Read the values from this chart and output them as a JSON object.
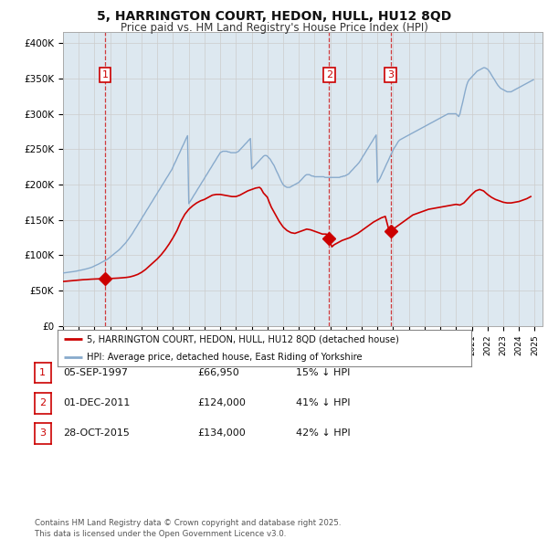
{
  "title": "5, HARRINGTON COURT, HEDON, HULL, HU12 8QD",
  "subtitle": "Price paid vs. HM Land Registry's House Price Index (HPI)",
  "title_fontsize": 10,
  "subtitle_fontsize": 8.5,
  "ylabel_ticks": [
    "£0",
    "£50K",
    "£100K",
    "£150K",
    "£200K",
    "£250K",
    "£300K",
    "£350K",
    "£400K"
  ],
  "ytick_values": [
    0,
    50000,
    100000,
    150000,
    200000,
    250000,
    300000,
    350000,
    400000
  ],
  "ylim": [
    0,
    415000
  ],
  "xlim_start": 1995.0,
  "xlim_end": 2025.5,
  "sale_dates": [
    1997.68,
    2011.92,
    2015.83
  ],
  "sale_prices": [
    66950,
    124000,
    134000
  ],
  "sale_labels": [
    "1",
    "2",
    "3"
  ],
  "red_line_color": "#cc0000",
  "blue_line_color": "#88aacc",
  "grid_color": "#cccccc",
  "chart_bg_color": "#dde8f0",
  "background_color": "#ffffff",
  "legend_label_red": "5, HARRINGTON COURT, HEDON, HULL, HU12 8QD (detached house)",
  "legend_label_blue": "HPI: Average price, detached house, East Riding of Yorkshire",
  "table_rows": [
    [
      "1",
      "05-SEP-1997",
      "£66,950",
      "15% ↓ HPI"
    ],
    [
      "2",
      "01-DEC-2011",
      "£124,000",
      "41% ↓ HPI"
    ],
    [
      "3",
      "28-OCT-2015",
      "£134,000",
      "42% ↓ HPI"
    ]
  ],
  "footnote": "Contains HM Land Registry data © Crown copyright and database right 2025.\nThis data is licensed under the Open Government Licence v3.0.",
  "hpi_years": [
    1995.0,
    1995.08,
    1995.17,
    1995.25,
    1995.33,
    1995.42,
    1995.5,
    1995.58,
    1995.67,
    1995.75,
    1995.83,
    1995.92,
    1996.0,
    1996.08,
    1996.17,
    1996.25,
    1996.33,
    1996.42,
    1996.5,
    1996.58,
    1996.67,
    1996.75,
    1996.83,
    1996.92,
    1997.0,
    1997.08,
    1997.17,
    1997.25,
    1997.33,
    1997.42,
    1997.5,
    1997.58,
    1997.67,
    1997.75,
    1997.83,
    1997.92,
    1998.0,
    1998.08,
    1998.17,
    1998.25,
    1998.33,
    1998.42,
    1998.5,
    1998.58,
    1998.67,
    1998.75,
    1998.83,
    1998.92,
    1999.0,
    1999.08,
    1999.17,
    1999.25,
    1999.33,
    1999.42,
    1999.5,
    1999.58,
    1999.67,
    1999.75,
    1999.83,
    1999.92,
    2000.0,
    2000.08,
    2000.17,
    2000.25,
    2000.33,
    2000.42,
    2000.5,
    2000.58,
    2000.67,
    2000.75,
    2000.83,
    2000.92,
    2001.0,
    2001.08,
    2001.17,
    2001.25,
    2001.33,
    2001.42,
    2001.5,
    2001.58,
    2001.67,
    2001.75,
    2001.83,
    2001.92,
    2002.0,
    2002.08,
    2002.17,
    2002.25,
    2002.33,
    2002.42,
    2002.5,
    2002.58,
    2002.67,
    2002.75,
    2002.83,
    2002.92,
    2003.0,
    2003.08,
    2003.17,
    2003.25,
    2003.33,
    2003.42,
    2003.5,
    2003.58,
    2003.67,
    2003.75,
    2003.83,
    2003.92,
    2004.0,
    2004.08,
    2004.17,
    2004.25,
    2004.33,
    2004.42,
    2004.5,
    2004.58,
    2004.67,
    2004.75,
    2004.83,
    2004.92,
    2005.0,
    2005.08,
    2005.17,
    2005.25,
    2005.33,
    2005.42,
    2005.5,
    2005.58,
    2005.67,
    2005.75,
    2005.83,
    2005.92,
    2006.0,
    2006.08,
    2006.17,
    2006.25,
    2006.33,
    2006.42,
    2006.5,
    2006.58,
    2006.67,
    2006.75,
    2006.83,
    2006.92,
    2007.0,
    2007.08,
    2007.17,
    2007.25,
    2007.33,
    2007.42,
    2007.5,
    2007.58,
    2007.67,
    2007.75,
    2007.83,
    2007.92,
    2008.0,
    2008.08,
    2008.17,
    2008.25,
    2008.33,
    2008.42,
    2008.5,
    2008.58,
    2008.67,
    2008.75,
    2008.83,
    2008.92,
    2009.0,
    2009.08,
    2009.17,
    2009.25,
    2009.33,
    2009.42,
    2009.5,
    2009.58,
    2009.67,
    2009.75,
    2009.83,
    2009.92,
    2010.0,
    2010.08,
    2010.17,
    2010.25,
    2010.33,
    2010.42,
    2010.5,
    2010.58,
    2010.67,
    2010.75,
    2010.83,
    2010.92,
    2011.0,
    2011.08,
    2011.17,
    2011.25,
    2011.33,
    2011.42,
    2011.5,
    2011.58,
    2011.67,
    2011.75,
    2011.83,
    2011.92,
    2012.0,
    2012.08,
    2012.17,
    2012.25,
    2012.33,
    2012.42,
    2012.5,
    2012.58,
    2012.67,
    2012.75,
    2012.83,
    2012.92,
    2013.0,
    2013.08,
    2013.17,
    2013.25,
    2013.33,
    2013.42,
    2013.5,
    2013.58,
    2013.67,
    2013.75,
    2013.83,
    2013.92,
    2014.0,
    2014.08,
    2014.17,
    2014.25,
    2014.33,
    2014.42,
    2014.5,
    2014.58,
    2014.67,
    2014.75,
    2014.83,
    2014.92,
    2015.0,
    2015.08,
    2015.17,
    2015.25,
    2015.33,
    2015.42,
    2015.5,
    2015.58,
    2015.67,
    2015.75,
    2015.83,
    2015.92,
    2016.0,
    2016.08,
    2016.17,
    2016.25,
    2016.33,
    2016.42,
    2016.5,
    2016.58,
    2016.67,
    2016.75,
    2016.83,
    2016.92,
    2017.0,
    2017.08,
    2017.17,
    2017.25,
    2017.33,
    2017.42,
    2017.5,
    2017.58,
    2017.67,
    2017.75,
    2017.83,
    2017.92,
    2018.0,
    2018.08,
    2018.17,
    2018.25,
    2018.33,
    2018.42,
    2018.5,
    2018.58,
    2018.67,
    2018.75,
    2018.83,
    2018.92,
    2019.0,
    2019.08,
    2019.17,
    2019.25,
    2019.33,
    2019.42,
    2019.5,
    2019.58,
    2019.67,
    2019.75,
    2019.83,
    2019.92,
    2020.0,
    2020.08,
    2020.17,
    2020.25,
    2020.33,
    2020.42,
    2020.5,
    2020.58,
    2020.67,
    2020.75,
    2020.83,
    2020.92,
    2021.0,
    2021.08,
    2021.17,
    2021.25,
    2021.33,
    2021.42,
    2021.5,
    2021.58,
    2021.67,
    2021.75,
    2021.83,
    2021.92,
    2022.0,
    2022.08,
    2022.17,
    2022.25,
    2022.33,
    2022.42,
    2022.5,
    2022.58,
    2022.67,
    2022.75,
    2022.83,
    2022.92,
    2023.0,
    2023.08,
    2023.17,
    2023.25,
    2023.33,
    2023.42,
    2023.5,
    2023.58,
    2023.67,
    2023.75,
    2023.83,
    2023.92,
    2024.0,
    2024.08,
    2024.17,
    2024.25,
    2024.33,
    2024.42,
    2024.5,
    2024.58,
    2024.67,
    2024.75,
    2024.83,
    2024.92
  ],
  "hpi_values": [
    75000,
    75200,
    75500,
    75800,
    76000,
    76300,
    76500,
    76700,
    77000,
    77300,
    77600,
    78000,
    78500,
    78800,
    79200,
    79600,
    80000,
    80400,
    80900,
    81400,
    82000,
    82500,
    83200,
    84000,
    85000,
    85800,
    86600,
    87500,
    88500,
    89500,
    90500,
    91500,
    92500,
    93500,
    94500,
    96000,
    97500,
    99000,
    100500,
    102000,
    103500,
    105000,
    106500,
    108000,
    110000,
    112000,
    114000,
    116000,
    118000,
    120500,
    123000,
    125500,
    128000,
    131000,
    134000,
    137000,
    140000,
    143000,
    146000,
    149000,
    152000,
    155000,
    158000,
    161000,
    164000,
    167000,
    170000,
    173000,
    176000,
    179000,
    182000,
    185000,
    188000,
    191000,
    194000,
    197000,
    200000,
    203000,
    206000,
    209000,
    212000,
    215000,
    218000,
    221000,
    225000,
    229000,
    233000,
    237000,
    241000,
    245000,
    249000,
    253000,
    257000,
    261000,
    265000,
    269000,
    173000,
    176000,
    179000,
    182000,
    185000,
    188000,
    191000,
    194000,
    197000,
    200000,
    203000,
    206000,
    209000,
    212000,
    215000,
    218000,
    221000,
    224000,
    227000,
    230000,
    233000,
    236000,
    239000,
    242000,
    245000,
    246000,
    247000,
    247000,
    247000,
    247000,
    246000,
    246000,
    245000,
    245000,
    245000,
    245000,
    245000,
    246000,
    247000,
    249000,
    251000,
    253000,
    255000,
    257000,
    259000,
    261000,
    263000,
    265000,
    222000,
    224000,
    226000,
    228000,
    230000,
    232000,
    234000,
    236000,
    238000,
    240000,
    241000,
    241000,
    240000,
    238000,
    236000,
    233000,
    230000,
    227000,
    223000,
    219000,
    215000,
    211000,
    207000,
    203000,
    200000,
    198000,
    197000,
    196000,
    196000,
    196000,
    197000,
    198000,
    199000,
    200000,
    201000,
    202000,
    203000,
    205000,
    207000,
    209000,
    211000,
    213000,
    214000,
    214000,
    214000,
    213000,
    212000,
    212000,
    211000,
    211000,
    211000,
    211000,
    211000,
    211000,
    211000,
    211000,
    210000,
    210000,
    210000,
    210000,
    210000,
    210000,
    210000,
    210000,
    210000,
    210000,
    210000,
    210000,
    211000,
    211000,
    212000,
    212000,
    213000,
    214000,
    215000,
    217000,
    219000,
    221000,
    223000,
    225000,
    227000,
    229000,
    231000,
    234000,
    237000,
    240000,
    243000,
    246000,
    249000,
    252000,
    255000,
    258000,
    261000,
    264000,
    267000,
    270000,
    203000,
    206000,
    209000,
    213000,
    217000,
    221000,
    225000,
    229000,
    233000,
    237000,
    241000,
    245000,
    249000,
    252000,
    255000,
    258000,
    261000,
    263000,
    264000,
    265000,
    266000,
    267000,
    268000,
    269000,
    270000,
    271000,
    272000,
    273000,
    274000,
    275000,
    276000,
    277000,
    278000,
    279000,
    280000,
    281000,
    282000,
    283000,
    284000,
    285000,
    286000,
    287000,
    288000,
    289000,
    290000,
    291000,
    292000,
    293000,
    294000,
    295000,
    296000,
    297000,
    298000,
    299000,
    300000,
    300000,
    300000,
    300000,
    300000,
    300000,
    300000,
    298000,
    296000,
    300000,
    308000,
    316000,
    324000,
    332000,
    340000,
    345000,
    348000,
    350000,
    352000,
    354000,
    356000,
    358000,
    360000,
    361000,
    362000,
    363000,
    364000,
    365000,
    365000,
    364000,
    363000,
    361000,
    358000,
    355000,
    352000,
    349000,
    346000,
    343000,
    340000,
    338000,
    336000,
    335000,
    334000,
    333000,
    332000,
    331000,
    331000,
    331000,
    331000,
    332000,
    333000,
    334000,
    335000,
    336000,
    337000,
    338000,
    339000,
    340000,
    341000,
    342000,
    343000,
    344000,
    345000,
    346000,
    347000,
    348000
  ],
  "red_years": [
    1995.0,
    1995.25,
    1995.5,
    1995.75,
    1996.0,
    1996.25,
    1996.5,
    1996.75,
    1997.0,
    1997.25,
    1997.5,
    1997.68,
    1997.75,
    1998.0,
    1998.25,
    1998.5,
    1998.75,
    1999.0,
    1999.25,
    1999.5,
    1999.75,
    2000.0,
    2000.25,
    2000.5,
    2000.75,
    2001.0,
    2001.25,
    2001.5,
    2001.75,
    2002.0,
    2002.25,
    2002.5,
    2002.75,
    2003.0,
    2003.25,
    2003.5,
    2003.75,
    2004.0,
    2004.25,
    2004.5,
    2004.75,
    2005.0,
    2005.25,
    2005.5,
    2005.75,
    2006.0,
    2006.25,
    2006.5,
    2006.75,
    2007.0,
    2007.25,
    2007.5,
    2007.6,
    2007.75,
    2008.0,
    2008.1,
    2008.25,
    2008.5,
    2008.75,
    2009.0,
    2009.25,
    2009.5,
    2009.75,
    2010.0,
    2010.25,
    2010.5,
    2010.75,
    2011.0,
    2011.25,
    2011.5,
    2011.75,
    2011.92,
    2012.0,
    2012.1,
    2012.25,
    2012.5,
    2012.75,
    2013.0,
    2013.25,
    2013.5,
    2013.75,
    2014.0,
    2014.25,
    2014.5,
    2014.75,
    2015.0,
    2015.25,
    2015.5,
    2015.75,
    2015.83,
    2016.0,
    2016.25,
    2016.5,
    2016.75,
    2017.0,
    2017.25,
    2017.5,
    2017.75,
    2018.0,
    2018.25,
    2018.5,
    2018.75,
    2019.0,
    2019.25,
    2019.5,
    2019.75,
    2020.0,
    2020.25,
    2020.5,
    2020.75,
    2021.0,
    2021.25,
    2021.5,
    2021.75,
    2022.0,
    2022.25,
    2022.5,
    2022.75,
    2023.0,
    2023.25,
    2023.5,
    2023.75,
    2024.0,
    2024.25,
    2024.5,
    2024.75
  ],
  "red_values": [
    63000,
    63500,
    64000,
    64500,
    65000,
    65500,
    65800,
    66200,
    66500,
    66700,
    66900,
    66950,
    67000,
    67200,
    67500,
    67800,
    68200,
    68700,
    69500,
    71000,
    73000,
    76000,
    80000,
    85000,
    90000,
    95000,
    101000,
    108000,
    116000,
    125000,
    135000,
    148000,
    158000,
    165000,
    170000,
    174000,
    177000,
    179000,
    182000,
    185000,
    186000,
    186000,
    185000,
    184000,
    183000,
    183000,
    185000,
    188000,
    191000,
    193000,
    195000,
    196000,
    194000,
    188000,
    182000,
    176000,
    168000,
    158000,
    148000,
    140000,
    135000,
    132000,
    131000,
    133000,
    135000,
    137000,
    136000,
    134000,
    132000,
    130000,
    130000,
    124000,
    118000,
    112000,
    115000,
    118000,
    121000,
    123000,
    125000,
    128000,
    131000,
    135000,
    139000,
    143000,
    147000,
    150000,
    153000,
    155000,
    134000,
    134000,
    137000,
    141000,
    145000,
    149000,
    153000,
    157000,
    159000,
    161000,
    163000,
    165000,
    166000,
    167000,
    168000,
    169000,
    170000,
    171000,
    172000,
    171000,
    174000,
    180000,
    186000,
    191000,
    193000,
    191000,
    186000,
    182000,
    179000,
    177000,
    175000,
    174000,
    174000,
    175000,
    176000,
    178000,
    180000,
    183000
  ]
}
